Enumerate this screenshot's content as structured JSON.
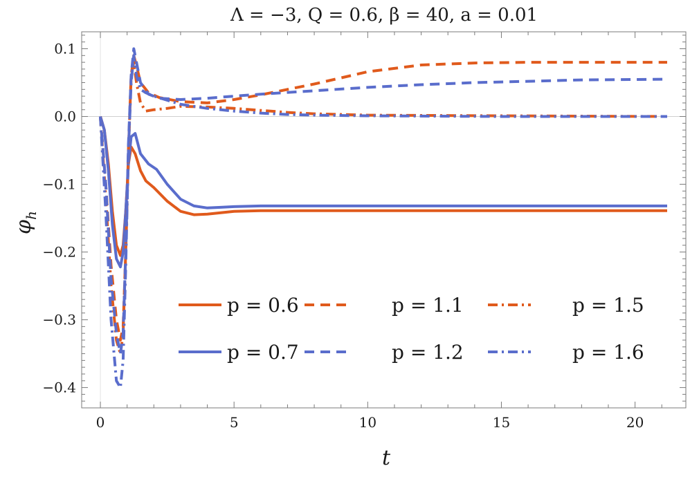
{
  "chart_data": {
    "type": "line",
    "title": "Λ = −3, Q = 0.6, β = 40, a = 0.01",
    "xlabel": "t",
    "ylabel": "φ_h",
    "xlim": [
      -0.7,
      21.9
    ],
    "ylim": [
      -0.43,
      0.125
    ],
    "x_ticks": [
      0,
      5,
      10,
      15,
      20
    ],
    "x_tick_labels": [
      "0",
      "5",
      "10",
      "15",
      "20"
    ],
    "y_ticks": [
      0.1,
      0.0,
      -0.1,
      -0.2,
      -0.3,
      -0.4
    ],
    "y_tick_labels": [
      "0.1",
      "0.0",
      "−0.1",
      "−0.2",
      "−0.3",
      "−0.4"
    ],
    "grid": false,
    "zero_line": true,
    "legend_placement": "lower-right",
    "colors": {
      "orange": "#e05a1c",
      "blue": "#5a6dcc"
    },
    "series": [
      {
        "name": "p = 0.6",
        "color": "#e05a1c",
        "style": "solid",
        "x": [
          0,
          0.15,
          0.3,
          0.45,
          0.6,
          0.75,
          0.85,
          0.95,
          1.05,
          1.15,
          1.3,
          1.5,
          1.7,
          2.0,
          2.5,
          3.0,
          3.5,
          4.0,
          4.5,
          5.0,
          6.0,
          7.0,
          8.0,
          10.0,
          15.0,
          21.2
        ],
        "y": [
          0,
          -0.02,
          -0.07,
          -0.14,
          -0.19,
          -0.205,
          -0.19,
          -0.14,
          -0.07,
          -0.045,
          -0.055,
          -0.08,
          -0.095,
          -0.105,
          -0.125,
          -0.14,
          -0.145,
          -0.144,
          -0.142,
          -0.14,
          -0.139,
          -0.139,
          -0.139,
          -0.139,
          -0.139,
          -0.139
        ]
      },
      {
        "name": "p = 0.7",
        "color": "#5a6dcc",
        "style": "solid",
        "x": [
          0,
          0.15,
          0.3,
          0.45,
          0.6,
          0.75,
          0.85,
          0.95,
          1.05,
          1.15,
          1.3,
          1.5,
          1.8,
          2.1,
          2.5,
          3.0,
          3.5,
          4.0,
          4.5,
          5.0,
          6.0,
          7.0,
          8.0,
          10.0,
          15.0,
          21.2
        ],
        "y": [
          0,
          -0.02,
          -0.08,
          -0.16,
          -0.21,
          -0.222,
          -0.2,
          -0.14,
          -0.07,
          -0.03,
          -0.025,
          -0.055,
          -0.07,
          -0.078,
          -0.1,
          -0.122,
          -0.132,
          -0.135,
          -0.134,
          -0.133,
          -0.132,
          -0.132,
          -0.132,
          -0.132,
          -0.132,
          -0.132
        ]
      },
      {
        "name": "p = 1.1",
        "color": "#e05a1c",
        "style": "dashed",
        "x": [
          0,
          0.2,
          0.4,
          0.6,
          0.75,
          0.85,
          0.95,
          1.05,
          1.15,
          1.25,
          1.35,
          1.5,
          1.8,
          2.2,
          3.0,
          4.0,
          5.0,
          6.0,
          8.0,
          10.0,
          12.0,
          14.0,
          16.0,
          18.0,
          21.2
        ],
        "y": [
          0,
          -0.1,
          -0.22,
          -0.3,
          -0.33,
          -0.31,
          -0.2,
          -0.05,
          0.06,
          0.09,
          0.075,
          0.05,
          0.035,
          0.028,
          0.022,
          0.02,
          0.025,
          0.032,
          0.048,
          0.066,
          0.076,
          0.079,
          0.08,
          0.08,
          0.08
        ]
      },
      {
        "name": "p = 1.5",
        "color": "#e05a1c",
        "style": "dashdot",
        "x": [
          0,
          0.2,
          0.4,
          0.6,
          0.75,
          0.85,
          0.95,
          1.05,
          1.15,
          1.25,
          1.35,
          1.5,
          1.7,
          2.0,
          2.5,
          3.0,
          4.0,
          5.0,
          6.0,
          7.0,
          8.0,
          10.0,
          15.0,
          21.2
        ],
        "y": [
          0,
          -0.12,
          -0.25,
          -0.33,
          -0.35,
          -0.32,
          -0.2,
          -0.05,
          0.06,
          0.08,
          0.05,
          0.02,
          0.008,
          0.01,
          0.012,
          0.015,
          0.014,
          0.012,
          0.009,
          0.006,
          0.004,
          0.002,
          0.001,
          0.0
        ]
      },
      {
        "name": "p = 1.2",
        "color": "#5a6dcc",
        "style": "dashed",
        "x": [
          0,
          0.2,
          0.4,
          0.6,
          0.75,
          0.85,
          0.95,
          1.05,
          1.15,
          1.25,
          1.35,
          1.5,
          1.8,
          2.2,
          3.0,
          4.0,
          5.0,
          6.0,
          8.0,
          10.0,
          12.0,
          14.0,
          16.0,
          18.0,
          21.2
        ],
        "y": [
          0,
          -0.1,
          -0.24,
          -0.32,
          -0.35,
          -0.32,
          -0.2,
          -0.04,
          0.06,
          0.1,
          0.08,
          0.05,
          0.033,
          0.027,
          0.025,
          0.027,
          0.03,
          0.033,
          0.038,
          0.043,
          0.047,
          0.05,
          0.052,
          0.054,
          0.055
        ]
      },
      {
        "name": "p = 1.6",
        "color": "#5a6dcc",
        "style": "dashdot",
        "x": [
          0,
          0.2,
          0.4,
          0.6,
          0.75,
          0.85,
          0.95,
          1.05,
          1.15,
          1.25,
          1.35,
          1.5,
          1.7,
          2.0,
          2.5,
          3.0,
          4.0,
          5.0,
          6.0,
          7.0,
          8.0,
          10.0,
          15.0,
          21.2
        ],
        "y": [
          0,
          -0.14,
          -0.3,
          -0.39,
          -0.4,
          -0.36,
          -0.22,
          -0.05,
          0.05,
          0.09,
          0.06,
          0.04,
          0.035,
          0.03,
          0.024,
          0.018,
          0.012,
          0.008,
          0.005,
          0.003,
          0.002,
          0.001,
          0.0,
          0.0
        ]
      }
    ],
    "legend_entries": [
      {
        "label": "p = 0.6",
        "color": "#e05a1c",
        "style": "solid"
      },
      {
        "label": "p = 1.1",
        "color": "#e05a1c",
        "style": "dashed"
      },
      {
        "label": "p = 1.5",
        "color": "#e05a1c",
        "style": "dashdot"
      },
      {
        "label": "p = 0.7",
        "color": "#5a6dcc",
        "style": "solid"
      },
      {
        "label": "p = 1.2",
        "color": "#5a6dcc",
        "style": "dashed"
      },
      {
        "label": "p = 1.6",
        "color": "#5a6dcc",
        "style": "dashdot"
      }
    ]
  }
}
